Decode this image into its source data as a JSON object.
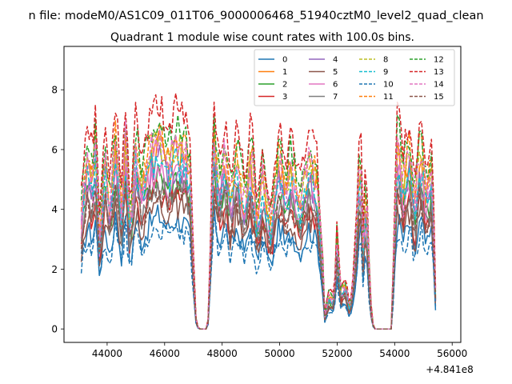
{
  "figure": {
    "suptitle": "n file: modeM0/AS1C09_011T06_9000006468_51940cztM0_level2_quad_clean",
    "title": "Quadrant 1 module wise count rates with 100.0s bins.",
    "offset_label": "+4.841e8"
  },
  "chart_data": {
    "type": "line",
    "title": "Quadrant 1 module wise count rates with 100.0s bins.",
    "xlabel": "",
    "ylabel": "",
    "x_offset": 484100000,
    "xlim": [
      42500,
      56300
    ],
    "ylim": [
      -0.45,
      9.45
    ],
    "xticks": [
      44000,
      46000,
      48000,
      50000,
      52000,
      54000,
      56000
    ],
    "xtick_labels": [
      "44000",
      "46000",
      "48000",
      "50000",
      "52000",
      "54000",
      "56000"
    ],
    "yticks": [
      0,
      2,
      4,
      6,
      8
    ],
    "ytick_labels": [
      "0",
      "2",
      "4",
      "6",
      "8"
    ],
    "grid": false,
    "legend_position": "top-right",
    "legend_columns": 4,
    "colors": [
      "#1f77b4",
      "#ff7f0e",
      "#2ca02c",
      "#d62728",
      "#9467bd",
      "#8c564b",
      "#e377c2",
      "#7f7f7f",
      "#bcbd22",
      "#17becf"
    ],
    "profile": [
      [
        43100,
        0.56
      ],
      [
        43300,
        0.82
      ],
      [
        43500,
        0.74
      ],
      [
        43600,
        0.9
      ],
      [
        43750,
        0.4
      ],
      [
        43900,
        0.86
      ],
      [
        44100,
        0.6
      ],
      [
        44300,
        0.92
      ],
      [
        44500,
        0.58
      ],
      [
        44650,
        0.95
      ],
      [
        44800,
        0.5
      ],
      [
        45000,
        0.9
      ],
      [
        45200,
        0.7
      ],
      [
        45500,
        0.86
      ],
      [
        45800,
        0.93
      ],
      [
        46100,
        0.82
      ],
      [
        46400,
        0.9
      ],
      [
        46700,
        0.86
      ],
      [
        46900,
        0.74
      ],
      [
        47000,
        0.3
      ],
      [
        47100,
        0.02
      ],
      [
        47200,
        0
      ],
      [
        47500,
        0
      ],
      [
        47600,
        0.4
      ],
      [
        47700,
        0.95
      ],
      [
        47900,
        0.7
      ],
      [
        48100,
        0.86
      ],
      [
        48300,
        0.64
      ],
      [
        48500,
        0.82
      ],
      [
        48800,
        0.62
      ],
      [
        49000,
        0.86
      ],
      [
        49200,
        0.55
      ],
      [
        49400,
        0.74
      ],
      [
        49700,
        0.5
      ],
      [
        50000,
        0.86
      ],
      [
        50200,
        0.66
      ],
      [
        50400,
        0.8
      ],
      [
        50700,
        0.6
      ],
      [
        51000,
        0.82
      ],
      [
        51300,
        0.72
      ],
      [
        51500,
        0.3
      ],
      [
        51550,
        0.04
      ],
      [
        51700,
        0.16
      ],
      [
        51900,
        0.14
      ],
      [
        52000,
        0.48
      ],
      [
        52100,
        0.18
      ],
      [
        52300,
        0.22
      ],
      [
        52450,
        0.08
      ],
      [
        52600,
        0.3
      ],
      [
        52700,
        0.55
      ],
      [
        52800,
        0.92
      ],
      [
        52900,
        0.4
      ],
      [
        53000,
        0.7
      ],
      [
        53100,
        0.32
      ],
      [
        53200,
        0.04
      ],
      [
        53300,
        0
      ],
      [
        53900,
        0
      ],
      [
        54000,
        0.5
      ],
      [
        54100,
        0.92
      ],
      [
        54300,
        0.72
      ],
      [
        54500,
        0.86
      ],
      [
        54700,
        0.6
      ],
      [
        54900,
        0.9
      ],
      [
        55100,
        0.66
      ],
      [
        55300,
        0.8
      ],
      [
        55430,
        0.12
      ]
    ],
    "series": [
      {
        "name": "0",
        "style": "solid",
        "peak": 4.1,
        "wiggle": 0.5,
        "color": "#1f77b4"
      },
      {
        "name": "1",
        "style": "solid",
        "peak": 6.5,
        "wiggle": 0.7,
        "color": "#ff7f0e"
      },
      {
        "name": "2",
        "style": "solid",
        "peak": 5.6,
        "wiggle": 0.6,
        "color": "#2ca02c"
      },
      {
        "name": "3",
        "style": "solid",
        "peak": 5.0,
        "wiggle": 0.6,
        "color": "#d62728"
      },
      {
        "name": "4",
        "style": "solid",
        "peak": 6.0,
        "wiggle": 0.7,
        "color": "#9467bd"
      },
      {
        "name": "5",
        "style": "solid",
        "peak": 4.6,
        "wiggle": 0.6,
        "color": "#8c564b"
      },
      {
        "name": "6",
        "style": "solid",
        "peak": 5.8,
        "wiggle": 0.7,
        "color": "#e377c2"
      },
      {
        "name": "7",
        "style": "solid",
        "peak": 5.3,
        "wiggle": 0.6,
        "color": "#7f7f7f"
      },
      {
        "name": "8",
        "style": "dashed",
        "peak": 6.8,
        "wiggle": 0.6,
        "color": "#bcbd22"
      },
      {
        "name": "9",
        "style": "dashed",
        "peak": 6.1,
        "wiggle": 0.7,
        "color": "#17becf"
      },
      {
        "name": "10",
        "style": "dashed",
        "peak": 3.7,
        "wiggle": 0.5,
        "color": "#1f77b4"
      },
      {
        "name": "11",
        "style": "dashed",
        "peak": 7.2,
        "wiggle": 0.6,
        "color": "#ff7f0e"
      },
      {
        "name": "12",
        "style": "dashed",
        "peak": 7.6,
        "wiggle": 0.6,
        "color": "#2ca02c"
      },
      {
        "name": "13",
        "style": "dashed",
        "peak": 8.2,
        "wiggle": 0.6,
        "color": "#d62728"
      },
      {
        "name": "14",
        "style": "dashed",
        "peak": 6.9,
        "wiggle": 0.7,
        "color": "#e377c2"
      },
      {
        "name": "15",
        "style": "dashed",
        "peak": 5.1,
        "wiggle": 0.6,
        "color": "#8c564b"
      }
    ]
  }
}
